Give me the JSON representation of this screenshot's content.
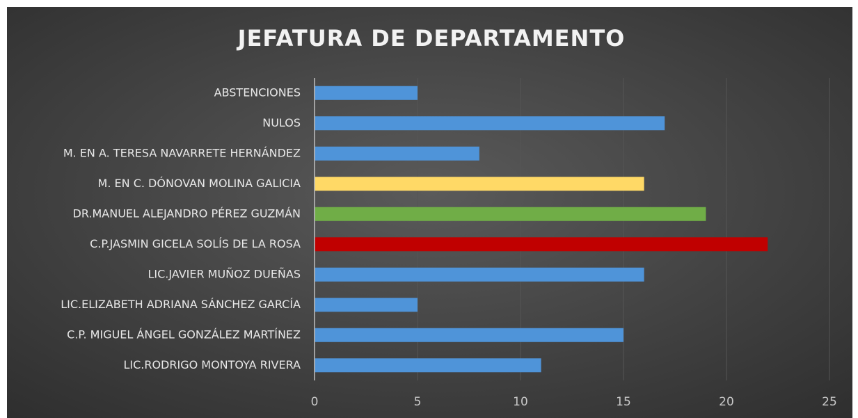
{
  "chart_data": {
    "type": "barh",
    "title": "JEFATURA DE DEPARTAMENTO",
    "categories": [
      "ABSTENCIONES",
      "NULOS",
      "M. EN A. TERESA NAVARRETE HERNÁNDEZ",
      "M. EN C. DÓNOVAN MOLINA GALICIA",
      "DR.MANUEL ALEJANDRO PÉREZ GUZMÁN",
      "C.P.JASMIN GICELA SOLÍS DE LA ROSA",
      "LIC.JAVIER MUÑOZ DUEÑAS",
      "LIC.ELIZABETH ADRIANA SÁNCHEZ GARCÍA",
      "C.P. MIGUEL ÁNGEL GONZÁLEZ MARTÍNEZ",
      "LIC.RODRIGO MONTOYA RIVERA"
    ],
    "values": [
      5,
      17,
      8,
      16,
      19,
      22,
      16,
      5,
      15,
      11
    ],
    "colors": [
      "#4f94d9",
      "#4f94d9",
      "#4f94d9",
      "#ffd966",
      "#70ad47",
      "#c00000",
      "#4f94d9",
      "#4f94d9",
      "#4f94d9",
      "#4f94d9"
    ],
    "xlim": [
      0,
      25
    ],
    "xticks": [
      0,
      5,
      10,
      15,
      20,
      25
    ],
    "grid": true
  }
}
